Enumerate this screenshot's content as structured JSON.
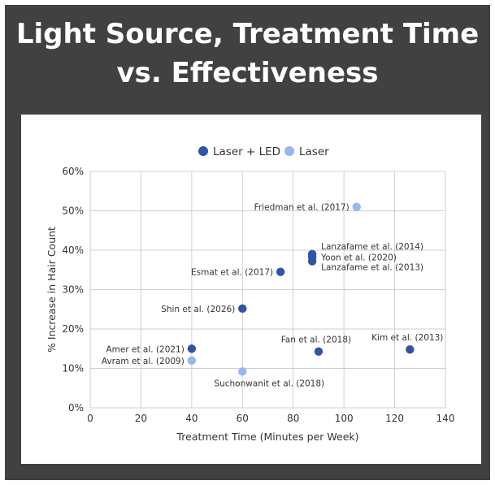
{
  "title_line1": "Light Source, Treatment Time",
  "title_line2": "vs. Effectiveness",
  "chart_data": {
    "type": "scatter",
    "xlabel": "Treatment Time (Minutes per Week)",
    "ylabel": "% Increase in Hair Count",
    "xlim": [
      0,
      140
    ],
    "ylim": [
      0,
      60
    ],
    "x_ticks": [
      "0",
      "20",
      "40",
      "60",
      "80",
      "100",
      "120",
      "140"
    ],
    "y_ticks": [
      "0%",
      "10%",
      "20%",
      "30%",
      "40%",
      "50%",
      "60%"
    ],
    "grid": true,
    "legend_position": "top-center",
    "series": [
      {
        "name": "Laser + LED",
        "color": "#2f55a4",
        "points": [
          {
            "x": 40,
            "y": 15,
            "label": "Amer et al. (2021)",
            "label_pos": "left"
          },
          {
            "x": 60,
            "y": 25.2,
            "label": "Shin et al. (2026)",
            "label_pos": "left"
          },
          {
            "x": 75,
            "y": 34.5,
            "label": "Esmat et al. (2017)",
            "label_pos": "left"
          },
          {
            "x": 87.5,
            "y": 39,
            "label": "Lanzafame et al. (2014)",
            "label_pos": "right-up"
          },
          {
            "x": 87.5,
            "y": 38.2,
            "label": "Yoon et al. (2020)",
            "label_pos": "right"
          },
          {
            "x": 87.5,
            "y": 37.2,
            "label": "Lanzafame et al. (2013)",
            "label_pos": "right-down"
          },
          {
            "x": 90,
            "y": 14.3,
            "label": "Fan et al. (2018)",
            "label_pos": "above"
          },
          {
            "x": 126,
            "y": 14.8,
            "label": "Kim et al. (2013)",
            "label_pos": "above"
          }
        ]
      },
      {
        "name": "Laser",
        "color": "#98b6ef",
        "points": [
          {
            "x": 40,
            "y": 12,
            "label": "Avram et al. (2009)",
            "label_pos": "left"
          },
          {
            "x": 60,
            "y": 9.2,
            "label": "Suchonwanit et al. (2018)",
            "label_pos": "below"
          },
          {
            "x": 105,
            "y": 51,
            "label": "Friedman et al. (2017)",
            "label_pos": "left"
          }
        ]
      }
    ]
  }
}
